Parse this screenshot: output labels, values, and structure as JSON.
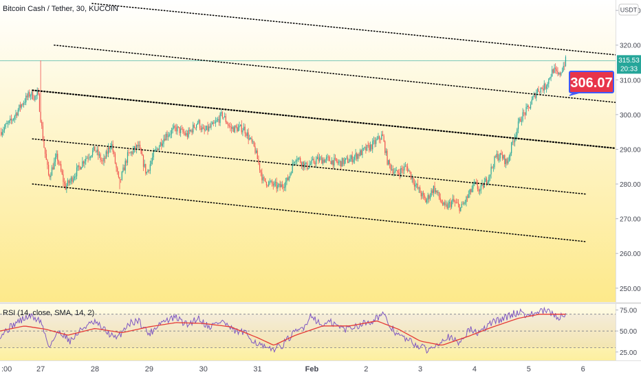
{
  "header": {
    "title": "Bitcoin Cash / Tether, 30, KUCOIN",
    "currency": "USDT"
  },
  "price_badge": {
    "last": "315.53",
    "countdown": "20:33"
  },
  "callout": {
    "value": "306.07"
  },
  "rsi_panel": {
    "label": "RSI (14, close, SMA, 14, 2)"
  },
  "colors": {
    "up": "#26a69a",
    "down": "#ef5350",
    "rsi_line": "#7e57c2",
    "rsi_ma": "#e53935",
    "callout_bg": "#e8354a",
    "callout_border": "#3d5afe",
    "channel": "#000000",
    "background_top": "#ffffff",
    "background_bottom": "#fde98a"
  },
  "chart_data": [
    {
      "type": "candlestick",
      "title": "Bitcoin Cash / Tether, 30, KUCOIN",
      "y_axis": {
        "ticks": [
          250,
          260,
          270,
          280,
          290,
          300,
          310,
          320,
          330
        ],
        "labels": [
          "250.00",
          "260.00",
          "270.00",
          "280.00",
          "290.00",
          "300.00",
          "310.00",
          "320.00",
          "330.00"
        ],
        "range": [
          246,
          333
        ]
      },
      "x_axis": {
        "labels": [
          ":00",
          "27",
          "28",
          "29",
          "30",
          "31",
          "Feb",
          "2",
          "3",
          "4",
          "5",
          "6"
        ],
        "positions_day": [
          -0.7,
          0,
          1,
          2,
          3,
          4,
          5,
          6,
          7,
          8,
          9,
          10
        ],
        "range_day": [
          -0.75,
          10.6
        ]
      },
      "price_path": [
        {
          "t": -0.75,
          "p": 295
        },
        {
          "t": -0.55,
          "p": 298
        },
        {
          "t": -0.35,
          "p": 303
        },
        {
          "t": -0.2,
          "p": 306
        },
        {
          "t": -0.1,
          "p": 305
        },
        {
          "t": -0.05,
          "p": 306
        },
        {
          "t": 0.05,
          "p": 292
        },
        {
          "t": 0.15,
          "p": 282
        },
        {
          "t": 0.3,
          "p": 288
        },
        {
          "t": 0.45,
          "p": 279
        },
        {
          "t": 0.55,
          "p": 281
        },
        {
          "t": 0.8,
          "p": 287
        },
        {
          "t": 1.0,
          "p": 290
        },
        {
          "t": 1.15,
          "p": 286
        },
        {
          "t": 1.3,
          "p": 292
        },
        {
          "t": 1.45,
          "p": 280
        },
        {
          "t": 1.6,
          "p": 288
        },
        {
          "t": 1.8,
          "p": 291
        },
        {
          "t": 1.95,
          "p": 283
        },
        {
          "t": 2.1,
          "p": 289
        },
        {
          "t": 2.3,
          "p": 294
        },
        {
          "t": 2.5,
          "p": 296
        },
        {
          "t": 2.7,
          "p": 294
        },
        {
          "t": 2.9,
          "p": 298
        },
        {
          "t": 3.0,
          "p": 295
        },
        {
          "t": 3.2,
          "p": 297
        },
        {
          "t": 3.35,
          "p": 300
        },
        {
          "t": 3.5,
          "p": 296
        },
        {
          "t": 3.75,
          "p": 296
        },
        {
          "t": 3.95,
          "p": 290
        },
        {
          "t": 4.1,
          "p": 281
        },
        {
          "t": 4.4,
          "p": 279
        },
        {
          "t": 4.55,
          "p": 281
        },
        {
          "t": 4.7,
          "p": 288
        },
        {
          "t": 4.9,
          "p": 285
        },
        {
          "t": 5.1,
          "p": 287
        },
        {
          "t": 5.3,
          "p": 287
        },
        {
          "t": 5.5,
          "p": 286
        },
        {
          "t": 5.7,
          "p": 287
        },
        {
          "t": 5.9,
          "p": 289
        },
        {
          "t": 6.1,
          "p": 291
        },
        {
          "t": 6.3,
          "p": 294
        },
        {
          "t": 6.4,
          "p": 286
        },
        {
          "t": 6.55,
          "p": 283
        },
        {
          "t": 6.75,
          "p": 285
        },
        {
          "t": 6.9,
          "p": 280
        },
        {
          "t": 7.1,
          "p": 275
        },
        {
          "t": 7.25,
          "p": 279
        },
        {
          "t": 7.45,
          "p": 273
        },
        {
          "t": 7.6,
          "p": 275
        },
        {
          "t": 7.75,
          "p": 273
        },
        {
          "t": 7.9,
          "p": 277
        },
        {
          "t": 8.0,
          "p": 280
        },
        {
          "t": 8.1,
          "p": 278
        },
        {
          "t": 8.25,
          "p": 282
        },
        {
          "t": 8.4,
          "p": 288
        },
        {
          "t": 8.5,
          "p": 288
        },
        {
          "t": 8.6,
          "p": 286
        },
        {
          "t": 8.7,
          "p": 292
        },
        {
          "t": 8.85,
          "p": 299
        },
        {
          "t": 9.0,
          "p": 302
        },
        {
          "t": 9.15,
          "p": 307
        },
        {
          "t": 9.3,
          "p": 308
        },
        {
          "t": 9.45,
          "p": 313
        },
        {
          "t": 9.55,
          "p": 311
        },
        {
          "t": 9.68,
          "p": 315.5
        }
      ],
      "channel_lines": [
        {
          "from": {
            "t": 0.95,
            "p": 332
          },
          "to": {
            "t": 10.6,
            "p": 317.2
          }
        },
        {
          "from": {
            "t": 0.25,
            "p": 320
          },
          "to": {
            "t": 10.6,
            "p": 303.5
          }
        },
        {
          "from": {
            "t": -0.15,
            "p": 307
          },
          "to": {
            "t": 10.6,
            "p": 290.3
          }
        },
        {
          "from": {
            "t": -0.15,
            "p": 293
          },
          "to": {
            "t": 10.05,
            "p": 277.1
          }
        },
        {
          "from": {
            "t": -0.15,
            "p": 280
          },
          "to": {
            "t": 10.05,
            "p": 263.4
          }
        }
      ],
      "last_price": 315.53,
      "annotation": {
        "value": 306.07,
        "points_to": {
          "t": 9.75,
          "p": 305.5
        }
      }
    },
    {
      "type": "line",
      "title": "RSI (14, close, SMA, 14, 2)",
      "y_axis": {
        "ticks": [
          25,
          50,
          75
        ],
        "labels": [
          "25.00",
          "50.00",
          "75.00"
        ],
        "range": [
          15,
          82
        ]
      },
      "levels": [
        70,
        50,
        30
      ],
      "series": [
        {
          "name": "RSI",
          "path": [
            {
              "t": -0.75,
              "p": 45
            },
            {
              "t": -0.45,
              "p": 60
            },
            {
              "t": -0.2,
              "p": 68
            },
            {
              "t": 0.0,
              "p": 62
            },
            {
              "t": 0.15,
              "p": 32
            },
            {
              "t": 0.35,
              "p": 50
            },
            {
              "t": 0.55,
              "p": 38
            },
            {
              "t": 0.8,
              "p": 55
            },
            {
              "t": 1.0,
              "p": 60
            },
            {
              "t": 1.2,
              "p": 50
            },
            {
              "t": 1.4,
              "p": 40
            },
            {
              "t": 1.6,
              "p": 58
            },
            {
              "t": 1.8,
              "p": 63
            },
            {
              "t": 2.0,
              "p": 46
            },
            {
              "t": 2.2,
              "p": 60
            },
            {
              "t": 2.5,
              "p": 66
            },
            {
              "t": 2.7,
              "p": 57
            },
            {
              "t": 2.9,
              "p": 66
            },
            {
              "t": 3.1,
              "p": 55
            },
            {
              "t": 3.35,
              "p": 62
            },
            {
              "t": 3.55,
              "p": 50
            },
            {
              "t": 3.75,
              "p": 48
            },
            {
              "t": 4.0,
              "p": 35
            },
            {
              "t": 4.2,
              "p": 27
            },
            {
              "t": 4.45,
              "p": 33
            },
            {
              "t": 4.65,
              "p": 46
            },
            {
              "t": 4.85,
              "p": 55
            },
            {
              "t": 5.0,
              "p": 70
            },
            {
              "t": 5.15,
              "p": 57
            },
            {
              "t": 5.35,
              "p": 60
            },
            {
              "t": 5.6,
              "p": 52
            },
            {
              "t": 5.85,
              "p": 57
            },
            {
              "t": 6.1,
              "p": 62
            },
            {
              "t": 6.3,
              "p": 70
            },
            {
              "t": 6.45,
              "p": 55
            },
            {
              "t": 6.6,
              "p": 45
            },
            {
              "t": 6.8,
              "p": 38
            },
            {
              "t": 7.0,
              "p": 31
            },
            {
              "t": 7.15,
              "p": 27
            },
            {
              "t": 7.3,
              "p": 35
            },
            {
              "t": 7.5,
              "p": 44
            },
            {
              "t": 7.7,
              "p": 35
            },
            {
              "t": 7.9,
              "p": 52
            },
            {
              "t": 8.1,
              "p": 47
            },
            {
              "t": 8.3,
              "p": 60
            },
            {
              "t": 8.5,
              "p": 64
            },
            {
              "t": 8.7,
              "p": 70
            },
            {
              "t": 8.85,
              "p": 73
            },
            {
              "t": 9.0,
              "p": 68
            },
            {
              "t": 9.15,
              "p": 72
            },
            {
              "t": 9.3,
              "p": 74
            },
            {
              "t": 9.45,
              "p": 70
            },
            {
              "t": 9.55,
              "p": 66
            },
            {
              "t": 9.68,
              "p": 71
            }
          ]
        },
        {
          "name": "RSI-based MA",
          "path": [
            {
              "t": -0.75,
              "p": 50
            },
            {
              "t": -0.3,
              "p": 56
            },
            {
              "t": 0.1,
              "p": 52
            },
            {
              "t": 0.5,
              "p": 45
            },
            {
              "t": 1.0,
              "p": 53
            },
            {
              "t": 1.5,
              "p": 48
            },
            {
              "t": 2.0,
              "p": 55
            },
            {
              "t": 2.5,
              "p": 60
            },
            {
              "t": 3.0,
              "p": 59
            },
            {
              "t": 3.5,
              "p": 55
            },
            {
              "t": 4.0,
              "p": 42
            },
            {
              "t": 4.3,
              "p": 33
            },
            {
              "t": 4.7,
              "p": 45
            },
            {
              "t": 5.2,
              "p": 56
            },
            {
              "t": 5.7,
              "p": 56
            },
            {
              "t": 6.2,
              "p": 62
            },
            {
              "t": 6.6,
              "p": 52
            },
            {
              "t": 7.0,
              "p": 38
            },
            {
              "t": 7.4,
              "p": 33
            },
            {
              "t": 7.9,
              "p": 44
            },
            {
              "t": 8.3,
              "p": 54
            },
            {
              "t": 8.8,
              "p": 65
            },
            {
              "t": 9.2,
              "p": 70
            },
            {
              "t": 9.68,
              "p": 70
            }
          ]
        }
      ]
    }
  ]
}
